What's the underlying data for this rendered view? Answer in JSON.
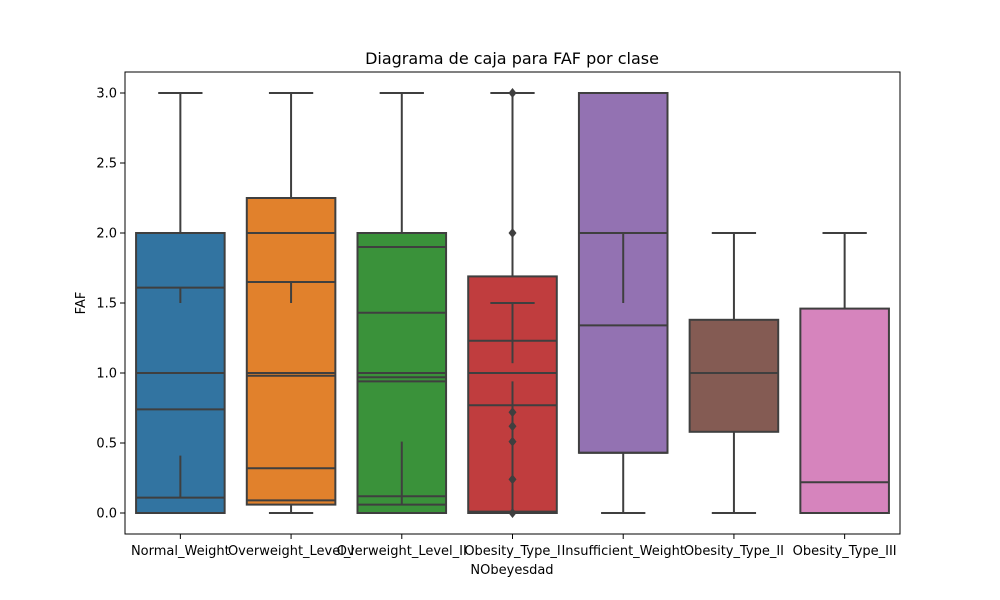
{
  "chart_data": {
    "type": "boxplot",
    "title": "Diagrama de caja para FAF por clase",
    "xlabel": "NObeyesdad",
    "ylabel": "FAF",
    "ylim": [
      -0.15,
      3.15
    ],
    "yticks": [
      "0.0",
      "0.5",
      "1.0",
      "1.5",
      "2.0",
      "2.5",
      "3.0"
    ],
    "grid": false,
    "categories": [
      "Normal_Weight",
      "Overweight_Level_I",
      "Overweight_Level_II",
      "Obesity_Type_I",
      "Insufficient_Weight",
      "Obesity_Type_II",
      "Obesity_Type_III"
    ],
    "boxes": [
      {
        "category": "Normal_Weight",
        "color": "#3274a1",
        "whisker_low": 0.0,
        "q1": 0.0,
        "median": 1.0,
        "q3": 2.0,
        "whisker_high": 3.0,
        "outliers": []
      },
      {
        "category": "Overweight_Level_I",
        "color": "#e1812c",
        "whisker_low": 0.0,
        "q1": 0.06,
        "median": 1.0,
        "q3": 2.25,
        "whisker_high": 3.0,
        "outliers": []
      },
      {
        "category": "Overweight_Level_II",
        "color": "#3a923a",
        "whisker_low": 0.0,
        "q1": 0.0,
        "median": 1.0,
        "q3": 2.0,
        "whisker_high": 3.0,
        "outliers": []
      },
      {
        "category": "Obesity_Type_I",
        "color": "#c03d3e",
        "whisker_low": 0.0,
        "q1": 0.0,
        "median": 1.0,
        "q3": 1.69,
        "whisker_high": 3.0,
        "outliers": [
          3.0,
          2.0,
          0.72,
          0.62,
          0.51,
          0.24,
          0.0
        ]
      },
      {
        "category": "Insufficient_Weight",
        "color": "#9372b2",
        "whisker_low": 0.0,
        "q1": 0.43,
        "median": 2.0,
        "q3": 3.0,
        "whisker_high": 3.0,
        "outliers": []
      },
      {
        "category": "Obesity_Type_II",
        "color": "#845b53",
        "whisker_low": 0.0,
        "q1": 0.58,
        "median": 1.0,
        "q3": 1.38,
        "whisker_high": 2.0,
        "outliers": []
      },
      {
        "category": "Obesity_Type_III",
        "color": "#d684bd",
        "whisker_low": 0.0,
        "q1": 0.0,
        "median": 0.22,
        "q3": 1.46,
        "whisker_high": 2.0,
        "outliers": []
      }
    ],
    "overlay_lines": [
      {
        "category": "Normal_Weight",
        "whisker_low": 0.0,
        "q1": 0.11,
        "median": 0.74,
        "q3": 1.61,
        "whisker_high": 3.0,
        "whisker_inner_top": 1.5,
        "whisker_inner_bottom": 0.41
      },
      {
        "category": "Overweight_Level_I",
        "whisker_low": 0.0,
        "q1": 0.09,
        "median": 0.32,
        "q3": 1.65,
        "whisker_high": 3.0,
        "extra": [
          0.98,
          2.0
        ],
        "whisker_inner_top": 1.5
      },
      {
        "category": "Overweight_Level_II",
        "whisker_low": 0.0,
        "q1": 0.06,
        "median": 0.12,
        "q3": 1.43,
        "whisker_high": 3.0,
        "extra": [
          0.94,
          0.97,
          1.9
        ],
        "whisker_inner_bottom": 0.51
      },
      {
        "category": "Obesity_Type_I",
        "whisker_low": 0.0,
        "q1": 0.01,
        "median": 0.77,
        "q3": 1.23,
        "whisker_high": 1.5,
        "whisker_inner_top": 1.07,
        "whisker_inner_bottom": 0.94
      },
      {
        "category": "Insufficient_Weight",
        "whisker_low": 0.0,
        "q1": 0.43,
        "median": 1.34,
        "q3": 2.0,
        "whisker_high": 3.0,
        "whisker_inner_top": 1.5
      }
    ]
  }
}
